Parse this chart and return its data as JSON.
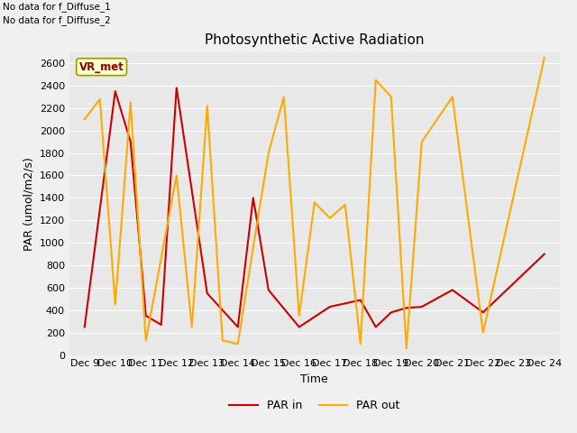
{
  "title": "Photosynthetic Active Radiation",
  "xlabel": "Time",
  "ylabel": "PAR (umol/m2/s)",
  "text_top_left_1": "No data for f_Diffuse_1",
  "text_top_left_2": "No data for f_Diffuse_2",
  "legend_box_label": "VR_met",
  "ylim": [
    0,
    2700
  ],
  "yticks": [
    0,
    200,
    400,
    600,
    800,
    1000,
    1200,
    1400,
    1600,
    1800,
    2000,
    2200,
    2400,
    2600
  ],
  "x_tick_positions": [
    0,
    1,
    2,
    3,
    4,
    5,
    6,
    7,
    8,
    9,
    10,
    11,
    12,
    13,
    14,
    15
  ],
  "x_tick_labels": [
    "Dec 9",
    "Dec 10",
    "Dec 11",
    "Dec 12",
    "Dec 13",
    "Dec 14",
    "Dec 15",
    "Dec 16",
    "Dec 17",
    "Dec 18",
    "Dec 19",
    "Dec 20",
    "Dec 21",
    "Dec 22",
    "Dec 23",
    "Dec 24"
  ],
  "par_in_x": [
    0,
    1,
    1.5,
    2,
    2.5,
    3,
    4,
    5,
    5.5,
    6,
    7,
    8,
    8.5,
    9,
    9.5,
    10,
    10.5,
    11,
    12,
    13,
    15
  ],
  "par_in_y": [
    250,
    2350,
    1900,
    350,
    270,
    2380,
    550,
    250,
    1400,
    580,
    250,
    430,
    460,
    490,
    250,
    380,
    420,
    430,
    580,
    380,
    900
  ],
  "par_out_x": [
    0,
    0.5,
    1,
    1.5,
    2,
    3,
    3.5,
    4,
    4.5,
    5,
    5.5,
    6,
    6.5,
    7,
    7.5,
    8,
    8.5,
    9,
    9.5,
    10,
    10.5,
    11,
    12,
    13,
    15
  ],
  "par_out_y": [
    2100,
    2280,
    450,
    2250,
    130,
    1600,
    250,
    2220,
    130,
    100,
    960,
    1800,
    2300,
    350,
    1360,
    1220,
    1340,
    100,
    2450,
    2300,
    60,
    1900,
    2300,
    200,
    2650
  ],
  "color_par_in": "#cc0000",
  "color_par_out": "#ffaa00",
  "background_color": "#f0f0f0",
  "plot_bg": "#e8e8e8",
  "grid_color": "#ffffff",
  "title_fontsize": 11,
  "axis_label_fontsize": 9,
  "tick_fontsize": 8
}
